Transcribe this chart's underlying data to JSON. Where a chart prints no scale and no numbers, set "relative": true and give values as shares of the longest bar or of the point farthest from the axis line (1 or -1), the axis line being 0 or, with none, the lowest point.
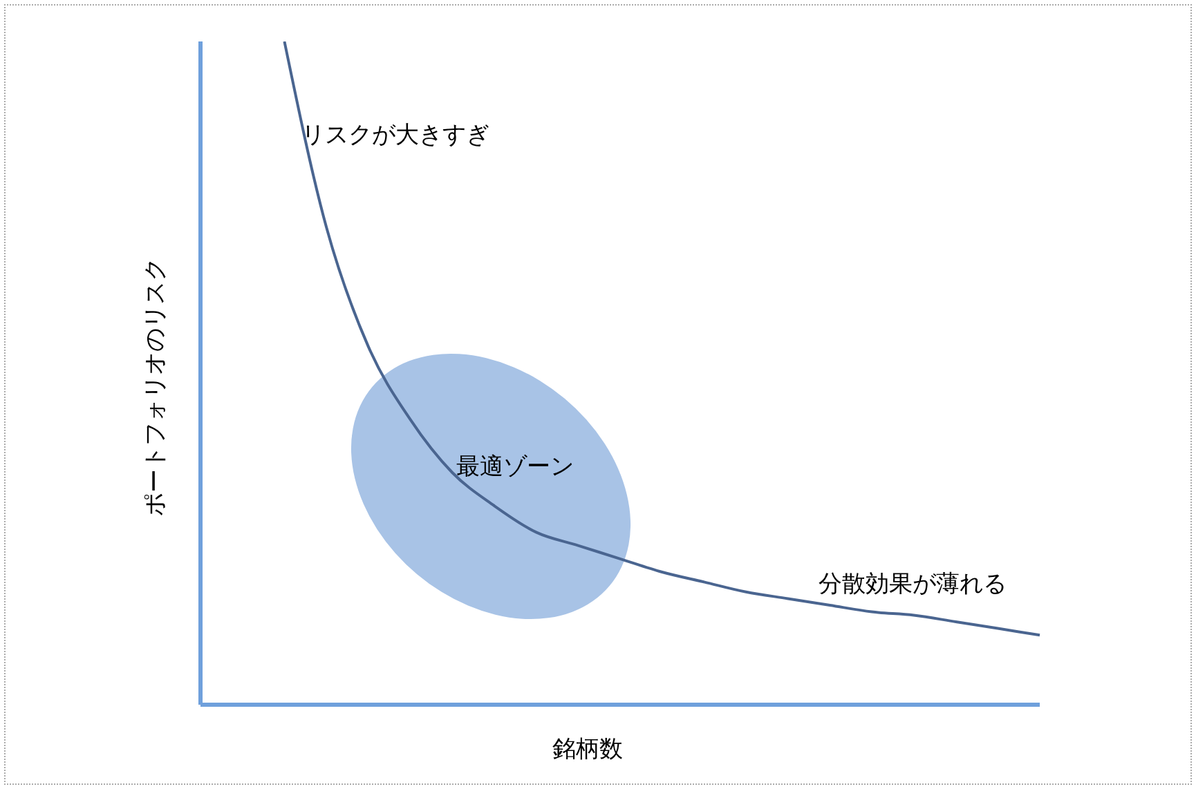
{
  "chart_data": {
    "type": "line",
    "relative": true,
    "xlabel": "銘柄数",
    "ylabel": "ポートフォリオのリスク",
    "categories": [
      null,
      null,
      null,
      null,
      null,
      null,
      null,
      null,
      null,
      null,
      null,
      null,
      null,
      null,
      null,
      null,
      null,
      null,
      null,
      null,
      null
    ],
    "series": [
      {
        "color": "#4a6590",
        "values": [
          null,
          null,
          1,
          0.72,
          0.54,
          0.43,
          0.35,
          0.3,
          0.26,
          0.24,
          0.22,
          0.2,
          0.185,
          0.17,
          0.16,
          0.15,
          0.14,
          0.135,
          0.125,
          0.115,
          0.105
        ]
      }
    ],
    "annotations": [
      "リスクが大きすぎ",
      "最適ゾーン",
      "分散効果が薄れる"
    ],
    "marker": "none",
    "line_style": "solid"
  }
}
